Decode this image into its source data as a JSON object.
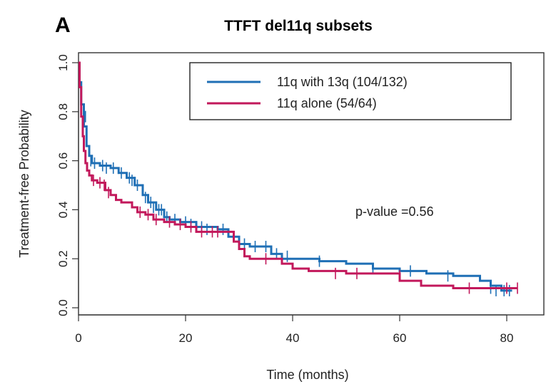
{
  "panel_label": "A",
  "chart_data": {
    "type": "line",
    "subtype": "kaplan-meier",
    "title": "TTFT del11q subsets",
    "xlabel": "Time (months)",
    "ylabel": "Treatment-free Probability",
    "xlim": [
      0,
      84
    ],
    "ylim": [
      0,
      1
    ],
    "xticks": [
      0,
      20,
      40,
      60,
      80
    ],
    "yticks": [
      0.0,
      0.2,
      0.4,
      0.6,
      0.8,
      1.0
    ],
    "xtick_labels": [
      "0",
      "20",
      "40",
      "60",
      "80"
    ],
    "ytick_labels": [
      "0.0",
      "0.2",
      "0.4",
      "0.6",
      "0.8",
      "1.0"
    ],
    "legend_position": "top-right",
    "annotation": "p-value =0.56",
    "series": [
      {
        "name": "11q with 13q (104/132)",
        "color": "#1f6fb5",
        "steps": [
          [
            0,
            1.0
          ],
          [
            0.2,
            0.92
          ],
          [
            0.5,
            0.83
          ],
          [
            1,
            0.74
          ],
          [
            1.5,
            0.66
          ],
          [
            2,
            0.62
          ],
          [
            2.5,
            0.59
          ],
          [
            4,
            0.58
          ],
          [
            6,
            0.57
          ],
          [
            7.5,
            0.55
          ],
          [
            9,
            0.53
          ],
          [
            10.5,
            0.5
          ],
          [
            12,
            0.46
          ],
          [
            13,
            0.43
          ],
          [
            14.5,
            0.4
          ],
          [
            16,
            0.37
          ],
          [
            17,
            0.36
          ],
          [
            19,
            0.35
          ],
          [
            22,
            0.33
          ],
          [
            26,
            0.32
          ],
          [
            28,
            0.29
          ],
          [
            30,
            0.26
          ],
          [
            32,
            0.25
          ],
          [
            36,
            0.22
          ],
          [
            38,
            0.2
          ],
          [
            45,
            0.19
          ],
          [
            50,
            0.18
          ],
          [
            55,
            0.16
          ],
          [
            60,
            0.15
          ],
          [
            65,
            0.14
          ],
          [
            70,
            0.13
          ],
          [
            75,
            0.11
          ],
          [
            77,
            0.09
          ],
          [
            79,
            0.07
          ],
          [
            81,
            0.07
          ]
        ],
        "censored": [
          [
            1.3,
            0.78
          ],
          [
            2.3,
            0.6
          ],
          [
            3,
            0.59
          ],
          [
            4.5,
            0.58
          ],
          [
            5.2,
            0.57
          ],
          [
            6.5,
            0.57
          ],
          [
            8,
            0.55
          ],
          [
            9.5,
            0.53
          ],
          [
            10,
            0.52
          ],
          [
            11,
            0.5
          ],
          [
            12.5,
            0.45
          ],
          [
            13.5,
            0.43
          ],
          [
            14,
            0.41
          ],
          [
            15,
            0.4
          ],
          [
            15.5,
            0.4
          ],
          [
            16.5,
            0.37
          ],
          [
            18,
            0.36
          ],
          [
            20,
            0.35
          ],
          [
            21,
            0.34
          ],
          [
            23,
            0.33
          ],
          [
            24,
            0.32
          ],
          [
            27,
            0.32
          ],
          [
            29,
            0.29
          ],
          [
            31,
            0.26
          ],
          [
            33,
            0.25
          ],
          [
            35,
            0.25
          ],
          [
            37,
            0.22
          ],
          [
            39,
            0.21
          ],
          [
            45,
            0.19
          ],
          [
            55,
            0.16
          ],
          [
            62,
            0.15
          ],
          [
            69,
            0.13
          ],
          [
            77,
            0.08
          ],
          [
            78,
            0.07
          ],
          [
            79.5,
            0.07
          ],
          [
            80.5,
            0.07
          ]
        ]
      },
      {
        "name": "11q alone (54/64)",
        "color": "#c2185b",
        "steps": [
          [
            0,
            1.0
          ],
          [
            0.2,
            0.9
          ],
          [
            0.5,
            0.78
          ],
          [
            0.8,
            0.7
          ],
          [
            1,
            0.64
          ],
          [
            1.3,
            0.59
          ],
          [
            1.6,
            0.56
          ],
          [
            2,
            0.54
          ],
          [
            2.5,
            0.52
          ],
          [
            3.5,
            0.51
          ],
          [
            5,
            0.48
          ],
          [
            6,
            0.46
          ],
          [
            7,
            0.44
          ],
          [
            8,
            0.43
          ],
          [
            10,
            0.41
          ],
          [
            11,
            0.39
          ],
          [
            12.5,
            0.38
          ],
          [
            14,
            0.36
          ],
          [
            16,
            0.35
          ],
          [
            18,
            0.34
          ],
          [
            20,
            0.33
          ],
          [
            22,
            0.31
          ],
          [
            24,
            0.31
          ],
          [
            27,
            0.31
          ],
          [
            29,
            0.27
          ],
          [
            30,
            0.24
          ],
          [
            31,
            0.21
          ],
          [
            32,
            0.2
          ],
          [
            36,
            0.2
          ],
          [
            38,
            0.18
          ],
          [
            40,
            0.16
          ],
          [
            43,
            0.15
          ],
          [
            50,
            0.14
          ],
          [
            58,
            0.14
          ],
          [
            60,
            0.11
          ],
          [
            64,
            0.09
          ],
          [
            70,
            0.08
          ],
          [
            78,
            0.08
          ],
          [
            82,
            0.08
          ]
        ],
        "censored": [
          [
            2.8,
            0.52
          ],
          [
            4,
            0.51
          ],
          [
            4.8,
            0.5
          ],
          [
            5.6,
            0.47
          ],
          [
            11.5,
            0.39
          ],
          [
            13,
            0.38
          ],
          [
            14.5,
            0.36
          ],
          [
            17,
            0.35
          ],
          [
            19,
            0.34
          ],
          [
            21,
            0.33
          ],
          [
            23,
            0.31
          ],
          [
            25,
            0.31
          ],
          [
            26,
            0.31
          ],
          [
            35,
            0.2
          ],
          [
            48,
            0.14
          ],
          [
            52,
            0.14
          ],
          [
            60,
            0.13
          ],
          [
            73,
            0.08
          ],
          [
            80,
            0.08
          ],
          [
            82,
            0.08
          ]
        ]
      }
    ]
  }
}
